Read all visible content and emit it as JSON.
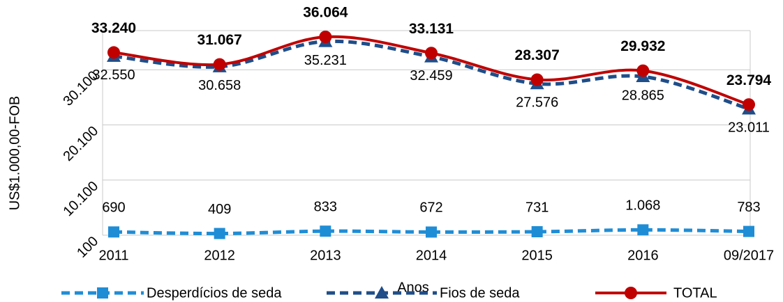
{
  "chart_data": {
    "type": "line",
    "x_label": "Anos",
    "y_label": "US$1.000,00-FOB",
    "categories": [
      "2011",
      "2012",
      "2013",
      "2014",
      "2015",
      "2016",
      "09/2017"
    ],
    "ylim": [
      100,
      37200
    ],
    "yticks": [
      100,
      {
        "value": 10100,
        "label": "10.100"
      },
      {
        "value": 20100,
        "label": "20.100"
      },
      {
        "value": 30100,
        "label": "30.100"
      }
    ],
    "grid": true,
    "legend": "bottom",
    "series": [
      {
        "name": "Desperdícios de seda",
        "color": "#1f8dd6",
        "dash": true,
        "marker": "square",
        "values": [
          690,
          409,
          833,
          672,
          731,
          1068,
          783
        ],
        "value_labels": [
          "690",
          "409",
          "833",
          "672",
          "731",
          "1.068",
          "783"
        ]
      },
      {
        "name": "Fios de seda",
        "color": "#1f4e89",
        "dash": true,
        "marker": "triangle",
        "values": [
          32550,
          30658,
          35231,
          32459,
          27576,
          28865,
          23011
        ],
        "value_labels": [
          "32.550",
          "30.658",
          "35.231",
          "32.459",
          "27.576",
          "28.865",
          "23.011"
        ]
      },
      {
        "name": "TOTAL",
        "color": "#c00000",
        "dash": false,
        "marker": "circle",
        "values": [
          33240,
          31067,
          36064,
          33131,
          28307,
          29932,
          23794
        ],
        "value_labels": [
          "33.240",
          "31.067",
          "36.064",
          "33.131",
          "28.307",
          "29.932",
          "23.794"
        ]
      }
    ]
  }
}
